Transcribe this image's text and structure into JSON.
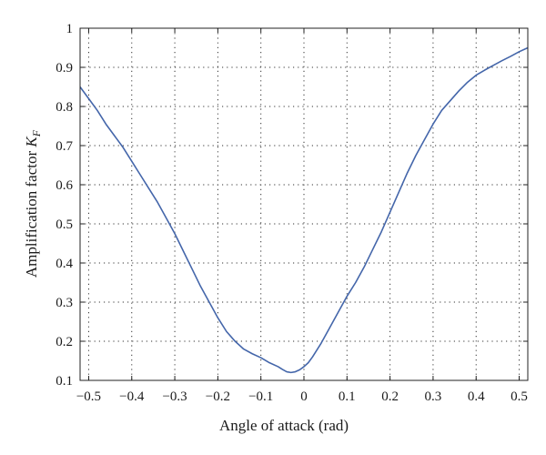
{
  "chart_data": {
    "type": "line",
    "title": "",
    "xlabel": "Angle of attack (rad)",
    "ylabel": "Amplification factor",
    "ylabel_symbol": "K",
    "ylabel_subscript": "F",
    "xlim": [
      -0.52,
      0.52
    ],
    "ylim": [
      0.1,
      1.0
    ],
    "xticks": [
      -0.5,
      -0.4,
      -0.3,
      -0.2,
      -0.1,
      0,
      0.1,
      0.2,
      0.3,
      0.4,
      0.5
    ],
    "xtick_labels": [
      "−0.5",
      "−0.4",
      "−0.3",
      "−0.2",
      "−0.1",
      "0",
      "0.1",
      "0.2",
      "0.3",
      "0.4",
      "0.5"
    ],
    "yticks": [
      0.1,
      0.2,
      0.3,
      0.4,
      0.5,
      0.6,
      0.7,
      0.8,
      0.9,
      1.0
    ],
    "ytick_labels": [
      "0.1",
      "0.2",
      "0.3",
      "0.4",
      "0.5",
      "0.6",
      "0.7",
      "0.8",
      "0.9",
      "1"
    ],
    "grid": true,
    "grid_style": "dotted",
    "line_color": "#4466aa",
    "series": [
      {
        "x": [
          -0.52,
          -0.5,
          -0.48,
          -0.46,
          -0.44,
          -0.42,
          -0.4,
          -0.38,
          -0.36,
          -0.34,
          -0.32,
          -0.3,
          -0.28,
          -0.26,
          -0.24,
          -0.22,
          -0.2,
          -0.18,
          -0.16,
          -0.14,
          -0.12,
          -0.1,
          -0.08,
          -0.06,
          -0.05,
          -0.04,
          -0.03,
          -0.02,
          -0.01,
          0.0,
          0.01,
          0.02,
          0.04,
          0.06,
          0.08,
          0.1,
          0.12,
          0.14,
          0.16,
          0.18,
          0.2,
          0.22,
          0.24,
          0.26,
          0.28,
          0.3,
          0.32,
          0.34,
          0.36,
          0.38,
          0.4,
          0.42,
          0.44,
          0.46,
          0.48,
          0.5,
          0.52
        ],
        "y": [
          0.85,
          0.82,
          0.79,
          0.755,
          0.725,
          0.695,
          0.66,
          0.625,
          0.59,
          0.555,
          0.515,
          0.475,
          0.43,
          0.385,
          0.34,
          0.3,
          0.26,
          0.225,
          0.2,
          0.18,
          0.168,
          0.158,
          0.145,
          0.135,
          0.128,
          0.122,
          0.12,
          0.122,
          0.127,
          0.135,
          0.145,
          0.16,
          0.195,
          0.235,
          0.275,
          0.315,
          0.35,
          0.39,
          0.435,
          0.48,
          0.53,
          0.58,
          0.63,
          0.675,
          0.715,
          0.755,
          0.79,
          0.815,
          0.84,
          0.862,
          0.88,
          0.893,
          0.905,
          0.917,
          0.928,
          0.94,
          0.95
        ]
      }
    ]
  }
}
